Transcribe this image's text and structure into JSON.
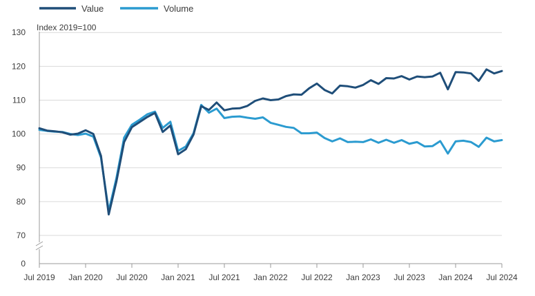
{
  "chart_data": {
    "type": "line",
    "unit_label": "Index 2019=100",
    "x": [
      "Jul 2019",
      "Aug 2019",
      "Sep 2019",
      "Oct 2019",
      "Nov 2019",
      "Dec 2019",
      "Jan 2020",
      "Feb 2020",
      "Mar 2020",
      "Apr 2020",
      "May 2020",
      "Jun 2020",
      "Jul 2020",
      "Aug 2020",
      "Sep 2020",
      "Oct 2020",
      "Nov 2020",
      "Dec 2020",
      "Jan 2021",
      "Feb 2021",
      "Mar 2021",
      "Apr 2021",
      "May 2021",
      "Jun 2021",
      "Jul 2021",
      "Aug 2021",
      "Sep 2021",
      "Oct 2021",
      "Nov 2021",
      "Dec 2021",
      "Jan 2022",
      "Feb 2022",
      "Mar 2022",
      "Apr 2022",
      "May 2022",
      "Jun 2022",
      "Jul 2022",
      "Aug 2022",
      "Sep 2022",
      "Oct 2022",
      "Nov 2022",
      "Dec 2022",
      "Jan 2023",
      "Feb 2023",
      "Mar 2023",
      "Apr 2023",
      "May 2023",
      "Jun 2023",
      "Jul 2023",
      "Aug 2023",
      "Sep 2023",
      "Oct 2023",
      "Nov 2023",
      "Dec 2023",
      "Jan 2024",
      "Feb 2024",
      "Mar 2024",
      "Apr 2024",
      "May 2024",
      "Jun 2024",
      "Jul 2024"
    ],
    "x_tick_labels": [
      "Jul 2019",
      "Jan 2020",
      "Jul 2020",
      "Jan 2021",
      "Jul 2021",
      "Jan 2022",
      "Jul 2022",
      "Jan 2023",
      "Jul 2023",
      "Jan 2024",
      "Jul 2024"
    ],
    "y_ticks": [
      0,
      70,
      80,
      90,
      100,
      110,
      120,
      130
    ],
    "y_tick_labels": [
      "0",
      "70",
      "80",
      "90",
      "100",
      "110",
      "120",
      "130"
    ],
    "ylim": [
      0,
      130
    ],
    "axis_break": "between 0 and 70",
    "grid": true,
    "legend_placement": "top-left",
    "series": [
      {
        "name": "Value",
        "color": "#1f4e79",
        "values": [
          101.7,
          101.0,
          100.8,
          100.5,
          99.8,
          100.1,
          101.1,
          100.0,
          93.5,
          76.2,
          86.0,
          97.6,
          102.0,
          103.5,
          105.0,
          106.2,
          100.6,
          102.5,
          94.0,
          95.5,
          99.8,
          108.2,
          107.1,
          109.3,
          107.0,
          107.5,
          107.6,
          108.3,
          109.8,
          110.5,
          110.0,
          110.2,
          111.2,
          111.7,
          111.6,
          113.5,
          114.9,
          113.0,
          112.0,
          114.3,
          114.1,
          113.7,
          114.5,
          115.9,
          114.8,
          116.5,
          116.4,
          117.1,
          116.1,
          117.0,
          116.8,
          117.0,
          118.1,
          113.2,
          118.3,
          118.2,
          117.9,
          115.7,
          119.1,
          117.9,
          118.6
        ]
      },
      {
        "name": "Volume",
        "color": "#2b9bd0",
        "values": [
          101.2,
          100.9,
          100.7,
          100.6,
          100.0,
          99.7,
          100.1,
          99.2,
          93.0,
          77.2,
          87.0,
          98.9,
          102.7,
          104.2,
          105.8,
          106.6,
          101.8,
          103.6,
          95.0,
          96.3,
          100.2,
          108.6,
          106.3,
          107.5,
          104.7,
          105.1,
          105.2,
          104.8,
          104.5,
          104.9,
          103.3,
          102.7,
          102.1,
          101.8,
          100.2,
          100.2,
          100.4,
          98.8,
          97.8,
          98.7,
          97.6,
          97.7,
          97.6,
          98.4,
          97.4,
          98.3,
          97.4,
          98.2,
          97.1,
          97.6,
          96.3,
          96.4,
          97.9,
          94.2,
          97.8,
          98.0,
          97.6,
          96.2,
          98.9,
          97.8,
          98.2
        ]
      }
    ]
  },
  "colors": {
    "grid": "#d9d9d9",
    "axis": "#9a9a9a",
    "text": "#3c3c3c",
    "background": "#ffffff"
  }
}
